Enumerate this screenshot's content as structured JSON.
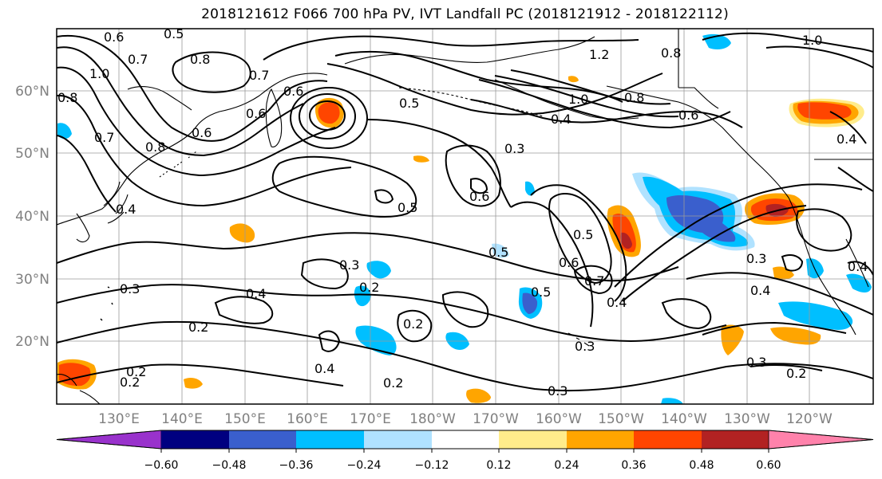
{
  "title": "2018121612 F066 700 hPa PV, IVT Landfall PC (2018121912 - 2018122112)",
  "map": {
    "lat_labels": [
      "60°N",
      "50°N",
      "40°N",
      "30°N",
      "20°N"
    ],
    "lon_labels": [
      "130°E",
      "140°E",
      "150°E",
      "160°E",
      "170°E",
      "180°W",
      "170°W",
      "160°W",
      "150°W",
      "140°W",
      "130°W",
      "120°W"
    ]
  },
  "contour_labels": [
    "0.6",
    "0.5",
    "0.8",
    "0.7",
    "1.0",
    "0.8",
    "0.7",
    "0.8",
    "0.6",
    "0.7",
    "0.4",
    "0.6",
    "0.6",
    "0.5",
    "0.3",
    "0.5",
    "0.6",
    "1.0",
    "0.4",
    "1.2",
    "0.8",
    "0.8",
    "1.0",
    "0.6",
    "0.4",
    "0.5",
    "0.3",
    "0.5",
    "0.5",
    "0.6",
    "0.7",
    "0.4",
    "0.3",
    "0.4",
    "0.3",
    "0.2",
    "0.3",
    "0.4",
    "0.2",
    "0.2",
    "0.2",
    "0.4",
    "0.2",
    "0.3",
    "0.3",
    "0.2",
    "0.2",
    "0.4"
  ],
  "colorbar": {
    "ticks": [
      "−0.60",
      "−0.48",
      "−0.36",
      "−0.24",
      "−0.12",
      "0.12",
      "0.24",
      "0.36",
      "0.48",
      "0.60"
    ],
    "colors": [
      "#9932CC",
      "#000080",
      "#3A5FCD",
      "#00BFFF",
      "#B0E2FF",
      "#FFFFFF",
      "#FFEC8B",
      "#FFA500",
      "#FF4500",
      "#B22222",
      "#FF82AB"
    ]
  },
  "shading_colors": {
    "blue_light": "#B0E2FF",
    "blue": "#00BFFF",
    "blue_dark": "#3A5FCD",
    "yellow": "#FFEC8B",
    "orange": "#FFA500",
    "red_orange": "#FF4500",
    "dark_red": "#B22222"
  }
}
